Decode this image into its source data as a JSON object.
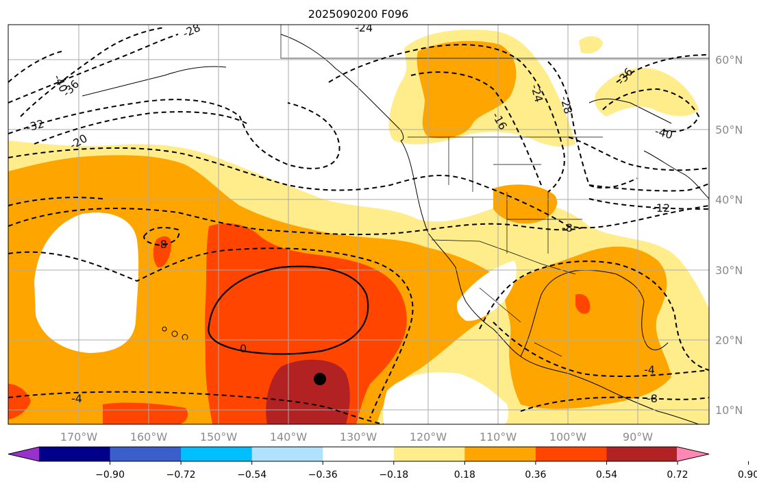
{
  "title": "2025090200 F096",
  "map": {
    "projection": "lat-lon",
    "lon_range": [
      -180,
      -80
    ],
    "lat_range": [
      8,
      65
    ],
    "longitude_labels": [
      "170°W",
      "160°W",
      "150°W",
      "140°W",
      "130°W",
      "120°W",
      "110°W",
      "100°W",
      "90°W"
    ],
    "latitude_labels": [
      "60°N",
      "50°N",
      "40°N",
      "30°N",
      "20°N",
      "10°N"
    ],
    "gridlines": true,
    "marker": {
      "symbol": "filled-circle",
      "color": "#000000"
    }
  },
  "contours": {
    "style": "dashed-negative-and-positive, solid-zero",
    "labels": [
      "-28",
      "-24",
      "-40",
      "-36",
      "-32",
      "-20",
      "-16",
      "-24",
      "-28",
      "-36",
      "-40",
      "-12",
      "-8",
      "-8",
      "0",
      "-4",
      "-4",
      "-8"
    ]
  },
  "colorbar": {
    "ticks": [
      "−0.90",
      "−0.72",
      "−0.54",
      "−0.36",
      "−0.18",
      "0.18",
      "0.36",
      "0.54",
      "0.72",
      "0.90"
    ],
    "colors": [
      "#9932cc",
      "#00008b",
      "#3a5fcd",
      "#00bfff",
      "#b0e2ff",
      "#ffffff",
      "#ffec8b",
      "#ffa500",
      "#ff4500",
      "#b22222",
      "#ff87b4"
    ],
    "extend": "both"
  }
}
